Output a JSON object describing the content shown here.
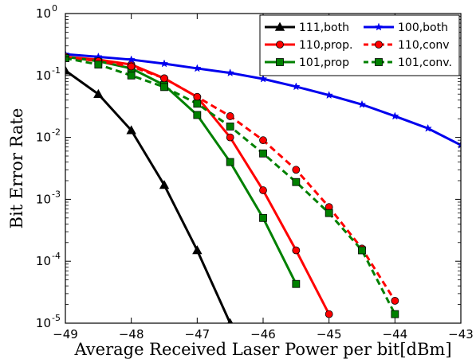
{
  "chart_data": {
    "type": "line",
    "title": "",
    "xlabel": "Average Received Laser Power per bit[dBm]",
    "ylabel": "Bit Error Rate",
    "xlim": [
      -49,
      -43
    ],
    "ylim": [
      1e-05,
      1
    ],
    "yscale": "log",
    "grid": false,
    "legend_position": "top-right",
    "x_ticks": [
      {
        "value": -49,
        "label": "−49"
      },
      {
        "value": -48,
        "label": "−48"
      },
      {
        "value": -47,
        "label": "−47"
      },
      {
        "value": -46,
        "label": "−46"
      },
      {
        "value": -45,
        "label": "−45"
      },
      {
        "value": -44,
        "label": "−44"
      },
      {
        "value": -43,
        "label": "−43"
      }
    ],
    "y_ticks": [
      {
        "exp": 0,
        "base": "10",
        "sup": "0"
      },
      {
        "exp": -1,
        "base": "10",
        "sup": "-1"
      },
      {
        "exp": -2,
        "base": "10",
        "sup": "-2"
      },
      {
        "exp": -3,
        "base": "10",
        "sup": "-3"
      },
      {
        "exp": -4,
        "base": "10",
        "sup": "-4"
      },
      {
        "exp": -5,
        "base": "10",
        "sup": "-5"
      }
    ],
    "series": [
      {
        "name": "111,both",
        "color": "#000000",
        "dash": "solid",
        "marker": "triangle",
        "x": [
          -49,
          -48.5,
          -48,
          -47.5,
          -47,
          -46.5
        ],
        "y": [
          0.12,
          0.05,
          0.013,
          0.0017,
          0.00015,
          1e-05
        ]
      },
      {
        "name": "110,prop.",
        "color": "#ff0000",
        "dash": "solid",
        "marker": "circle",
        "x": [
          -49,
          -48.5,
          -48,
          -47.5,
          -47,
          -46.5,
          -46,
          -45.5,
          -45
        ],
        "y": [
          0.2,
          0.18,
          0.15,
          0.09,
          0.045,
          0.01,
          0.0014,
          0.00015,
          1.4e-05
        ]
      },
      {
        "name": "101,prop",
        "color": "#008000",
        "dash": "solid",
        "marker": "square",
        "x": [
          -49,
          -48.5,
          -48,
          -47.5,
          -47,
          -46.5,
          -46,
          -45.5
        ],
        "y": [
          0.2,
          0.17,
          0.13,
          0.07,
          0.023,
          0.004,
          0.0005,
          4.3e-05
        ]
      },
      {
        "name": "100,both",
        "color": "#0000ee",
        "dash": "solid",
        "marker": "star",
        "x": [
          -49,
          -48.5,
          -48,
          -47.5,
          -47,
          -46.5,
          -46,
          -45.5,
          -45,
          -44.5,
          -44,
          -43.5,
          -43
        ],
        "y": [
          0.22,
          0.2,
          0.18,
          0.155,
          0.13,
          0.11,
          0.088,
          0.066,
          0.048,
          0.034,
          0.022,
          0.014,
          0.0075
        ]
      },
      {
        "name": "110,conv",
        "color": "#ff0000",
        "dash": "dashed",
        "marker": "circle",
        "x": [
          -49,
          -48.5,
          -48,
          -47.5,
          -47,
          -46.5,
          -46,
          -45.5,
          -45,
          -44.5,
          -44
        ],
        "y": [
          0.2,
          0.17,
          0.14,
          0.09,
          0.045,
          0.022,
          0.009,
          0.003,
          0.00075,
          0.00016,
          2.3e-05
        ]
      },
      {
        "name": "101,conv.",
        "color": "#008000",
        "dash": "dashed",
        "marker": "square",
        "x": [
          -49,
          -48.5,
          -48,
          -47.5,
          -47,
          -46.5,
          -46,
          -45.5,
          -45,
          -44.5,
          -44
        ],
        "y": [
          0.19,
          0.15,
          0.1,
          0.065,
          0.035,
          0.015,
          0.0055,
          0.0019,
          0.0006,
          0.00015,
          1.4e-05
        ]
      }
    ]
  }
}
